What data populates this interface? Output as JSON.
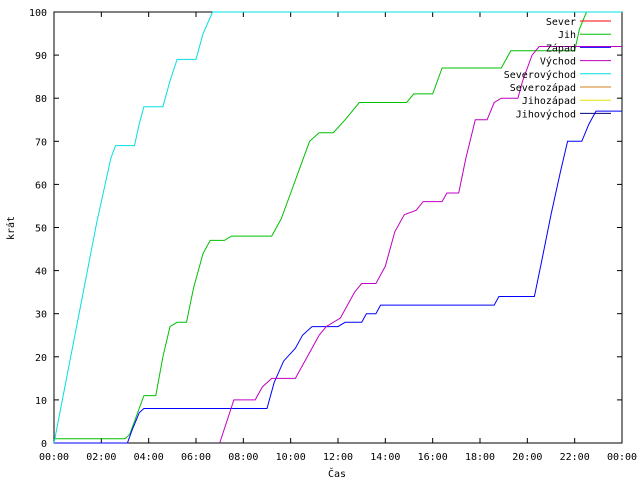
{
  "chart_data": {
    "type": "line",
    "title": "",
    "xlabel": "Čas",
    "ylabel": "krát",
    "xlim": [
      0,
      24
    ],
    "ylim": [
      0,
      100
    ],
    "x_ticks": [
      "00:00",
      "02:00",
      "04:00",
      "06:00",
      "08:00",
      "10:00",
      "12:00",
      "14:00",
      "16:00",
      "18:00",
      "20:00",
      "22:00",
      "00:00"
    ],
    "y_ticks": [
      "0",
      "10",
      "20",
      "30",
      "40",
      "50",
      "60",
      "70",
      "80",
      "90",
      "100"
    ],
    "grid": false,
    "legend_position": "top-right",
    "series": [
      {
        "name": "Sever",
        "color": "#ff0000",
        "points": []
      },
      {
        "name": "Jih",
        "color": "#00c000",
        "points": [
          [
            0,
            1
          ],
          [
            3.0,
            1
          ],
          [
            3.2,
            2
          ],
          [
            3.4,
            5
          ],
          [
            3.6,
            8
          ],
          [
            3.8,
            11
          ],
          [
            4.3,
            11
          ],
          [
            4.6,
            20
          ],
          [
            4.9,
            27
          ],
          [
            5.2,
            28
          ],
          [
            5.6,
            28
          ],
          [
            5.9,
            36
          ],
          [
            6.3,
            44
          ],
          [
            6.6,
            47
          ],
          [
            7.2,
            47
          ],
          [
            7.5,
            48
          ],
          [
            9.2,
            48
          ],
          [
            9.6,
            52
          ],
          [
            10.0,
            58
          ],
          [
            10.4,
            64
          ],
          [
            10.8,
            70
          ],
          [
            11.2,
            72
          ],
          [
            11.8,
            72
          ],
          [
            12.3,
            75
          ],
          [
            12.9,
            79
          ],
          [
            14.9,
            79
          ],
          [
            15.2,
            81
          ],
          [
            16.0,
            81
          ],
          [
            16.4,
            87
          ],
          [
            18.9,
            87
          ],
          [
            19.3,
            91
          ],
          [
            22.0,
            91
          ],
          [
            22.2,
            96
          ],
          [
            22.5,
            100
          ],
          [
            24,
            100
          ]
        ]
      },
      {
        "name": "Západ",
        "color": "#0000ff",
        "points": [
          [
            0,
            0
          ],
          [
            3.1,
            0
          ],
          [
            3.3,
            3
          ],
          [
            3.6,
            7
          ],
          [
            3.8,
            8
          ],
          [
            9.0,
            8
          ],
          [
            9.3,
            14
          ],
          [
            9.7,
            19
          ],
          [
            10.2,
            22
          ],
          [
            10.5,
            25
          ],
          [
            10.9,
            27
          ],
          [
            12.0,
            27
          ],
          [
            12.3,
            28
          ],
          [
            13.0,
            28
          ],
          [
            13.2,
            30
          ],
          [
            13.6,
            30
          ],
          [
            13.8,
            32
          ],
          [
            18.6,
            32
          ],
          [
            18.8,
            34
          ],
          [
            20.3,
            34
          ],
          [
            20.6,
            42
          ],
          [
            21.0,
            53
          ],
          [
            21.4,
            63
          ],
          [
            21.7,
            70
          ],
          [
            22.3,
            70
          ],
          [
            22.6,
            74
          ],
          [
            22.9,
            77
          ],
          [
            24,
            77
          ]
        ]
      },
      {
        "name": "Východ",
        "color": "#c000c0",
        "points": [
          [
            7.0,
            0
          ],
          [
            7.3,
            5
          ],
          [
            7.6,
            10
          ],
          [
            8.5,
            10
          ],
          [
            8.8,
            13
          ],
          [
            9.2,
            15
          ],
          [
            10.2,
            15
          ],
          [
            10.5,
            18
          ],
          [
            10.9,
            22
          ],
          [
            11.2,
            25
          ],
          [
            11.5,
            27
          ],
          [
            12.1,
            29
          ],
          [
            12.4,
            32
          ],
          [
            12.7,
            35
          ],
          [
            13.0,
            37
          ],
          [
            13.6,
            37
          ],
          [
            14.0,
            41
          ],
          [
            14.4,
            49
          ],
          [
            14.8,
            53
          ],
          [
            15.3,
            54
          ],
          [
            15.6,
            56
          ],
          [
            16.4,
            56
          ],
          [
            16.6,
            58
          ],
          [
            17.1,
            58
          ],
          [
            17.4,
            66
          ],
          [
            17.8,
            75
          ],
          [
            18.3,
            75
          ],
          [
            18.6,
            79
          ],
          [
            18.9,
            80
          ],
          [
            19.6,
            80
          ],
          [
            19.8,
            84
          ],
          [
            20.2,
            90
          ],
          [
            20.5,
            92
          ],
          [
            24,
            92
          ]
        ]
      },
      {
        "name": "Severovýchod",
        "color": "#00e0e0",
        "points": [
          [
            0,
            0
          ],
          [
            0.6,
            17
          ],
          [
            1.2,
            34
          ],
          [
            1.8,
            51
          ],
          [
            2.4,
            66
          ],
          [
            2.6,
            69
          ],
          [
            3.4,
            69
          ],
          [
            3.6,
            74
          ],
          [
            3.8,
            78
          ],
          [
            4.6,
            78
          ],
          [
            4.9,
            84
          ],
          [
            5.2,
            89
          ],
          [
            6.0,
            89
          ],
          [
            6.3,
            95
          ],
          [
            6.7,
            100
          ],
          [
            24,
            100
          ]
        ]
      },
      {
        "name": "Severozápad",
        "color": "#d08020",
        "points": []
      },
      {
        "name": "Jihozápad",
        "color": "#e0e000",
        "points": []
      },
      {
        "name": "Jihovýchod",
        "color": "#000080",
        "points": []
      }
    ]
  }
}
